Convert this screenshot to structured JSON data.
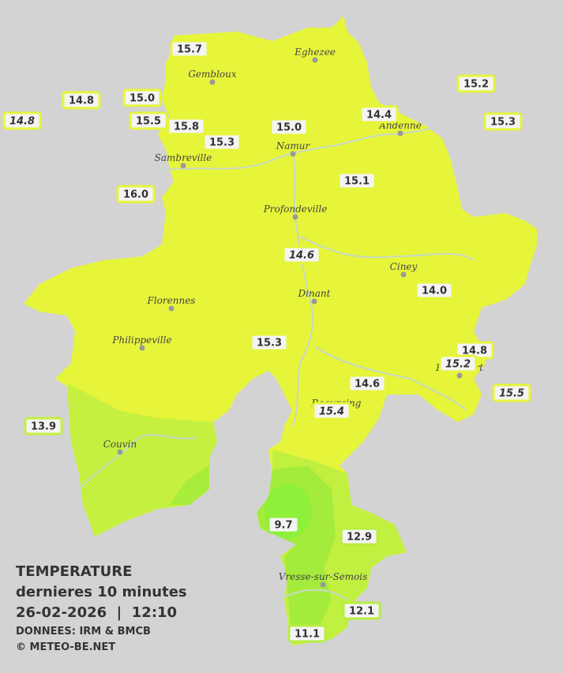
{
  "map": {
    "header": {
      "title": "TEMPERATURE",
      "subtitle": "dernieres 10 minutes",
      "datetime": "26-02-2026  |  12:10",
      "source": "DONNEES: IRM & BMCB",
      "copyright": "© METEO-BE.NET"
    },
    "towns": [
      "Eghezee",
      "Gembloux",
      "Andenne",
      "Namur",
      "Sambreville",
      "Profondeville",
      "Ciney",
      "Dinant",
      "Florennes",
      "Philippeville",
      "Beauraing",
      "Rochefort",
      "Couvin",
      "Vresse-sur-Semois"
    ],
    "stations": [
      {
        "value": "15.7",
        "style": "normal"
      },
      {
        "value": "14.8",
        "style": "normal"
      },
      {
        "value": "15.0",
        "style": "normal"
      },
      {
        "value": "14.8",
        "style": "italic"
      },
      {
        "value": "15.5",
        "style": "normal"
      },
      {
        "value": "15.8",
        "style": "normal"
      },
      {
        "value": "15.3",
        "style": "normal"
      },
      {
        "value": "15.0",
        "style": "normal"
      },
      {
        "value": "14.4",
        "style": "normal"
      },
      {
        "value": "15.2",
        "style": "normal"
      },
      {
        "value": "15.3",
        "style": "normal"
      },
      {
        "value": "16.0",
        "style": "normal"
      },
      {
        "value": "15.1",
        "style": "normal"
      },
      {
        "value": "14.6",
        "style": "italic"
      },
      {
        "value": "14.0",
        "style": "normal"
      },
      {
        "value": "15.3",
        "style": "normal"
      },
      {
        "value": "14.8",
        "style": "normal"
      },
      {
        "value": "15.2",
        "style": "italic"
      },
      {
        "value": "14.6",
        "style": "normal"
      },
      {
        "value": "15.4",
        "style": "italic"
      },
      {
        "value": "15.5",
        "style": "italic"
      },
      {
        "value": "13.9",
        "style": "normal"
      },
      {
        "value": "9.7",
        "style": "normal"
      },
      {
        "value": "12.9",
        "style": "normal"
      },
      {
        "value": "12.1",
        "style": "normal"
      },
      {
        "value": "11.1",
        "style": "normal"
      }
    ]
  }
}
